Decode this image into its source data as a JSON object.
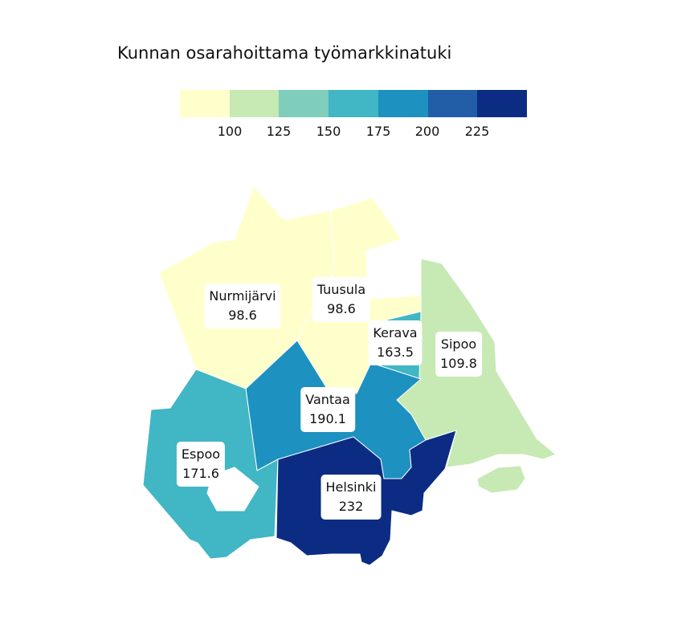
{
  "title": "Kunnan osarahoittama työmarkkinatuki",
  "legend": {
    "bins": [
      {
        "color": "#ffffcc"
      },
      {
        "color": "#c7e9b4"
      },
      {
        "color": "#7fcdbb"
      },
      {
        "color": "#41b6c4"
      },
      {
        "color": "#1d91c0"
      },
      {
        "color": "#225ea8"
      },
      {
        "color": "#0c2c84"
      }
    ],
    "ticks": [
      "100",
      "125",
      "150",
      "175",
      "200",
      "225"
    ]
  },
  "chart_data": {
    "type": "choropleth",
    "title": "Kunnan osarahoittama työmarkkinatuki",
    "scale_breaks": [
      100,
      125,
      150,
      175,
      200,
      225
    ],
    "regions": [
      {
        "name": "Nurmijärvi",
        "value": "98.6",
        "color": "#ffffcc"
      },
      {
        "name": "Tuusula",
        "value": "98.6",
        "color": "#ffffcc"
      },
      {
        "name": "Kerava",
        "value": "163.5",
        "color": "#41b6c4"
      },
      {
        "name": "Sipoo",
        "value": "109.8",
        "color": "#c7e9b4"
      },
      {
        "name": "Vantaa",
        "value": "190.1",
        "color": "#1d91c0"
      },
      {
        "name": "Espoo",
        "value": "171.6",
        "color": "#41b6c4"
      },
      {
        "name": "Helsinki",
        "value": "232",
        "color": "#0c2c84"
      }
    ]
  }
}
